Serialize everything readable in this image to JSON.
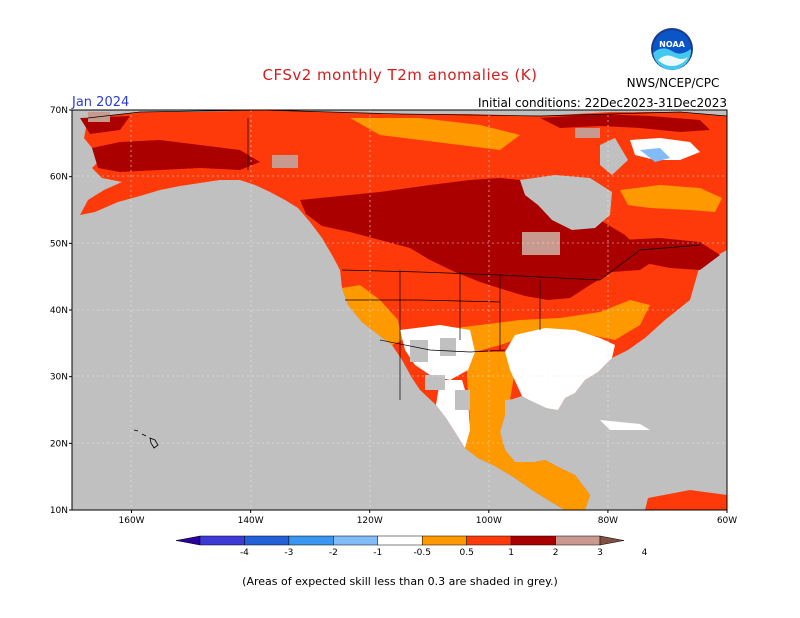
{
  "header": {
    "title": "CFSv2 monthly T2m anomalies (K)",
    "valid_month": "Jan 2024",
    "initial_conditions": "Initial conditions: 22Dec2023-31Dec2023",
    "agency": "NWS/NCEP/CPC",
    "logo_text": "NOAA"
  },
  "map": {
    "lat_ticks": [
      "70N",
      "60N",
      "50N",
      "40N",
      "30N",
      "20N",
      "10N"
    ],
    "lon_ticks": [
      "160W",
      "140W",
      "120W",
      "100W",
      "80W",
      "60W"
    ],
    "lat_range": [
      10,
      70
    ],
    "lon_range": [
      -170,
      -60
    ],
    "colors": {
      "ocean_grey": "#c0c0c0",
      "land_white": "#ffffff",
      "anom_0_5_1": "#ff9900",
      "anom_1_2": "#ff3a0a",
      "anom_2_3": "#ab0000",
      "anom_3_4": "#c89a8f"
    }
  },
  "colorbar": {
    "labels": [
      "-4",
      "-3",
      "-2",
      "-1",
      "-0.5",
      "0.5",
      "1",
      "2",
      "3",
      "4"
    ],
    "colors": [
      "#2a00a0",
      "#3d3ad6",
      "#2260d8",
      "#3a96f0",
      "#82bcf8",
      "#ffffff",
      "#ff9900",
      "#ff3a0a",
      "#ab0000",
      "#c89a8f",
      "#805040"
    ]
  },
  "footnote": "(Areas of expected skill less than 0.3 are shaded in grey.)"
}
